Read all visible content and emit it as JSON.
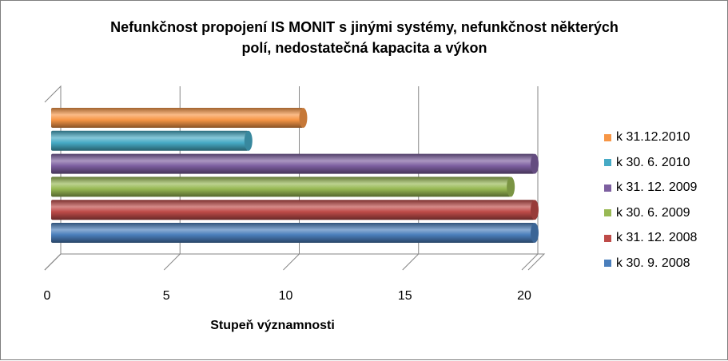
{
  "chart_data": {
    "type": "bar",
    "orientation": "horizontal",
    "style": "3d-cylinder",
    "title": "Nefunkčnost propojení IS MONIT s jinými systémy, nefunkčnost některých polí, nedostatečná kapacita a výkon",
    "title_lines": [
      "Nefunkčnost propojení IS MONIT s jinými systémy, nefunkčnost některých",
      "polí, nedostatečná kapacita a výkon"
    ],
    "xlabel": "Stupeň významnosti",
    "ylabel": "",
    "xlim": [
      0,
      20
    ],
    "xticks": [
      "0",
      "5",
      "10",
      "15",
      "20"
    ],
    "grid": true,
    "legend_position": "right",
    "series": [
      {
        "name": "k 30. 9. 2008",
        "value": 20,
        "color": "#4a7ebb"
      },
      {
        "name": "k 31. 12. 2008",
        "value": 20,
        "color": "#be4b48"
      },
      {
        "name": "k 30. 6. 2009",
        "value": 19,
        "color": "#98b954"
      },
      {
        "name": "k 31. 12. 2009",
        "value": 20,
        "color": "#7d5fa0"
      },
      {
        "name": "k 30. 6. 2010",
        "value": 8,
        "color": "#46aac5"
      },
      {
        "name": "k 31.12.2010",
        "value": 10.3,
        "color": "#f79646"
      }
    ]
  }
}
